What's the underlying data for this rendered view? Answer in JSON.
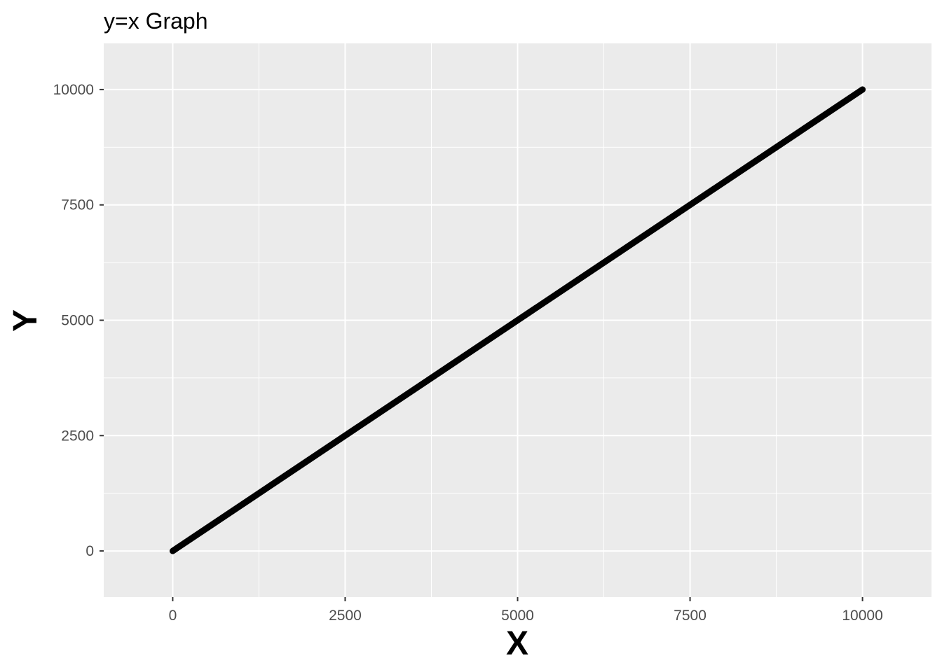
{
  "chart_data": {
    "type": "line",
    "title": "y=x Graph",
    "xlabel": "X",
    "ylabel": "Y",
    "xlim": [
      -1000,
      11000
    ],
    "ylim": [
      -1000,
      11000
    ],
    "x_ticks": [
      0,
      2500,
      5000,
      7500,
      10000
    ],
    "y_ticks": [
      0,
      2500,
      5000,
      7500,
      10000
    ],
    "x_tick_labels": [
      "0",
      "2500",
      "5000",
      "7500",
      "10000"
    ],
    "y_tick_labels": [
      "0",
      "2500",
      "5000",
      "7500",
      "10000"
    ],
    "grid": true,
    "legend": "none",
    "series": [
      {
        "x": [
          0,
          10000
        ],
        "y": [
          0,
          10000
        ],
        "color": "#000000"
      }
    ]
  },
  "colors": {
    "panel_background": "#ebebeb",
    "gridline": "#ffffff",
    "line": "#000000",
    "tick_text": "#4d4d4d"
  }
}
